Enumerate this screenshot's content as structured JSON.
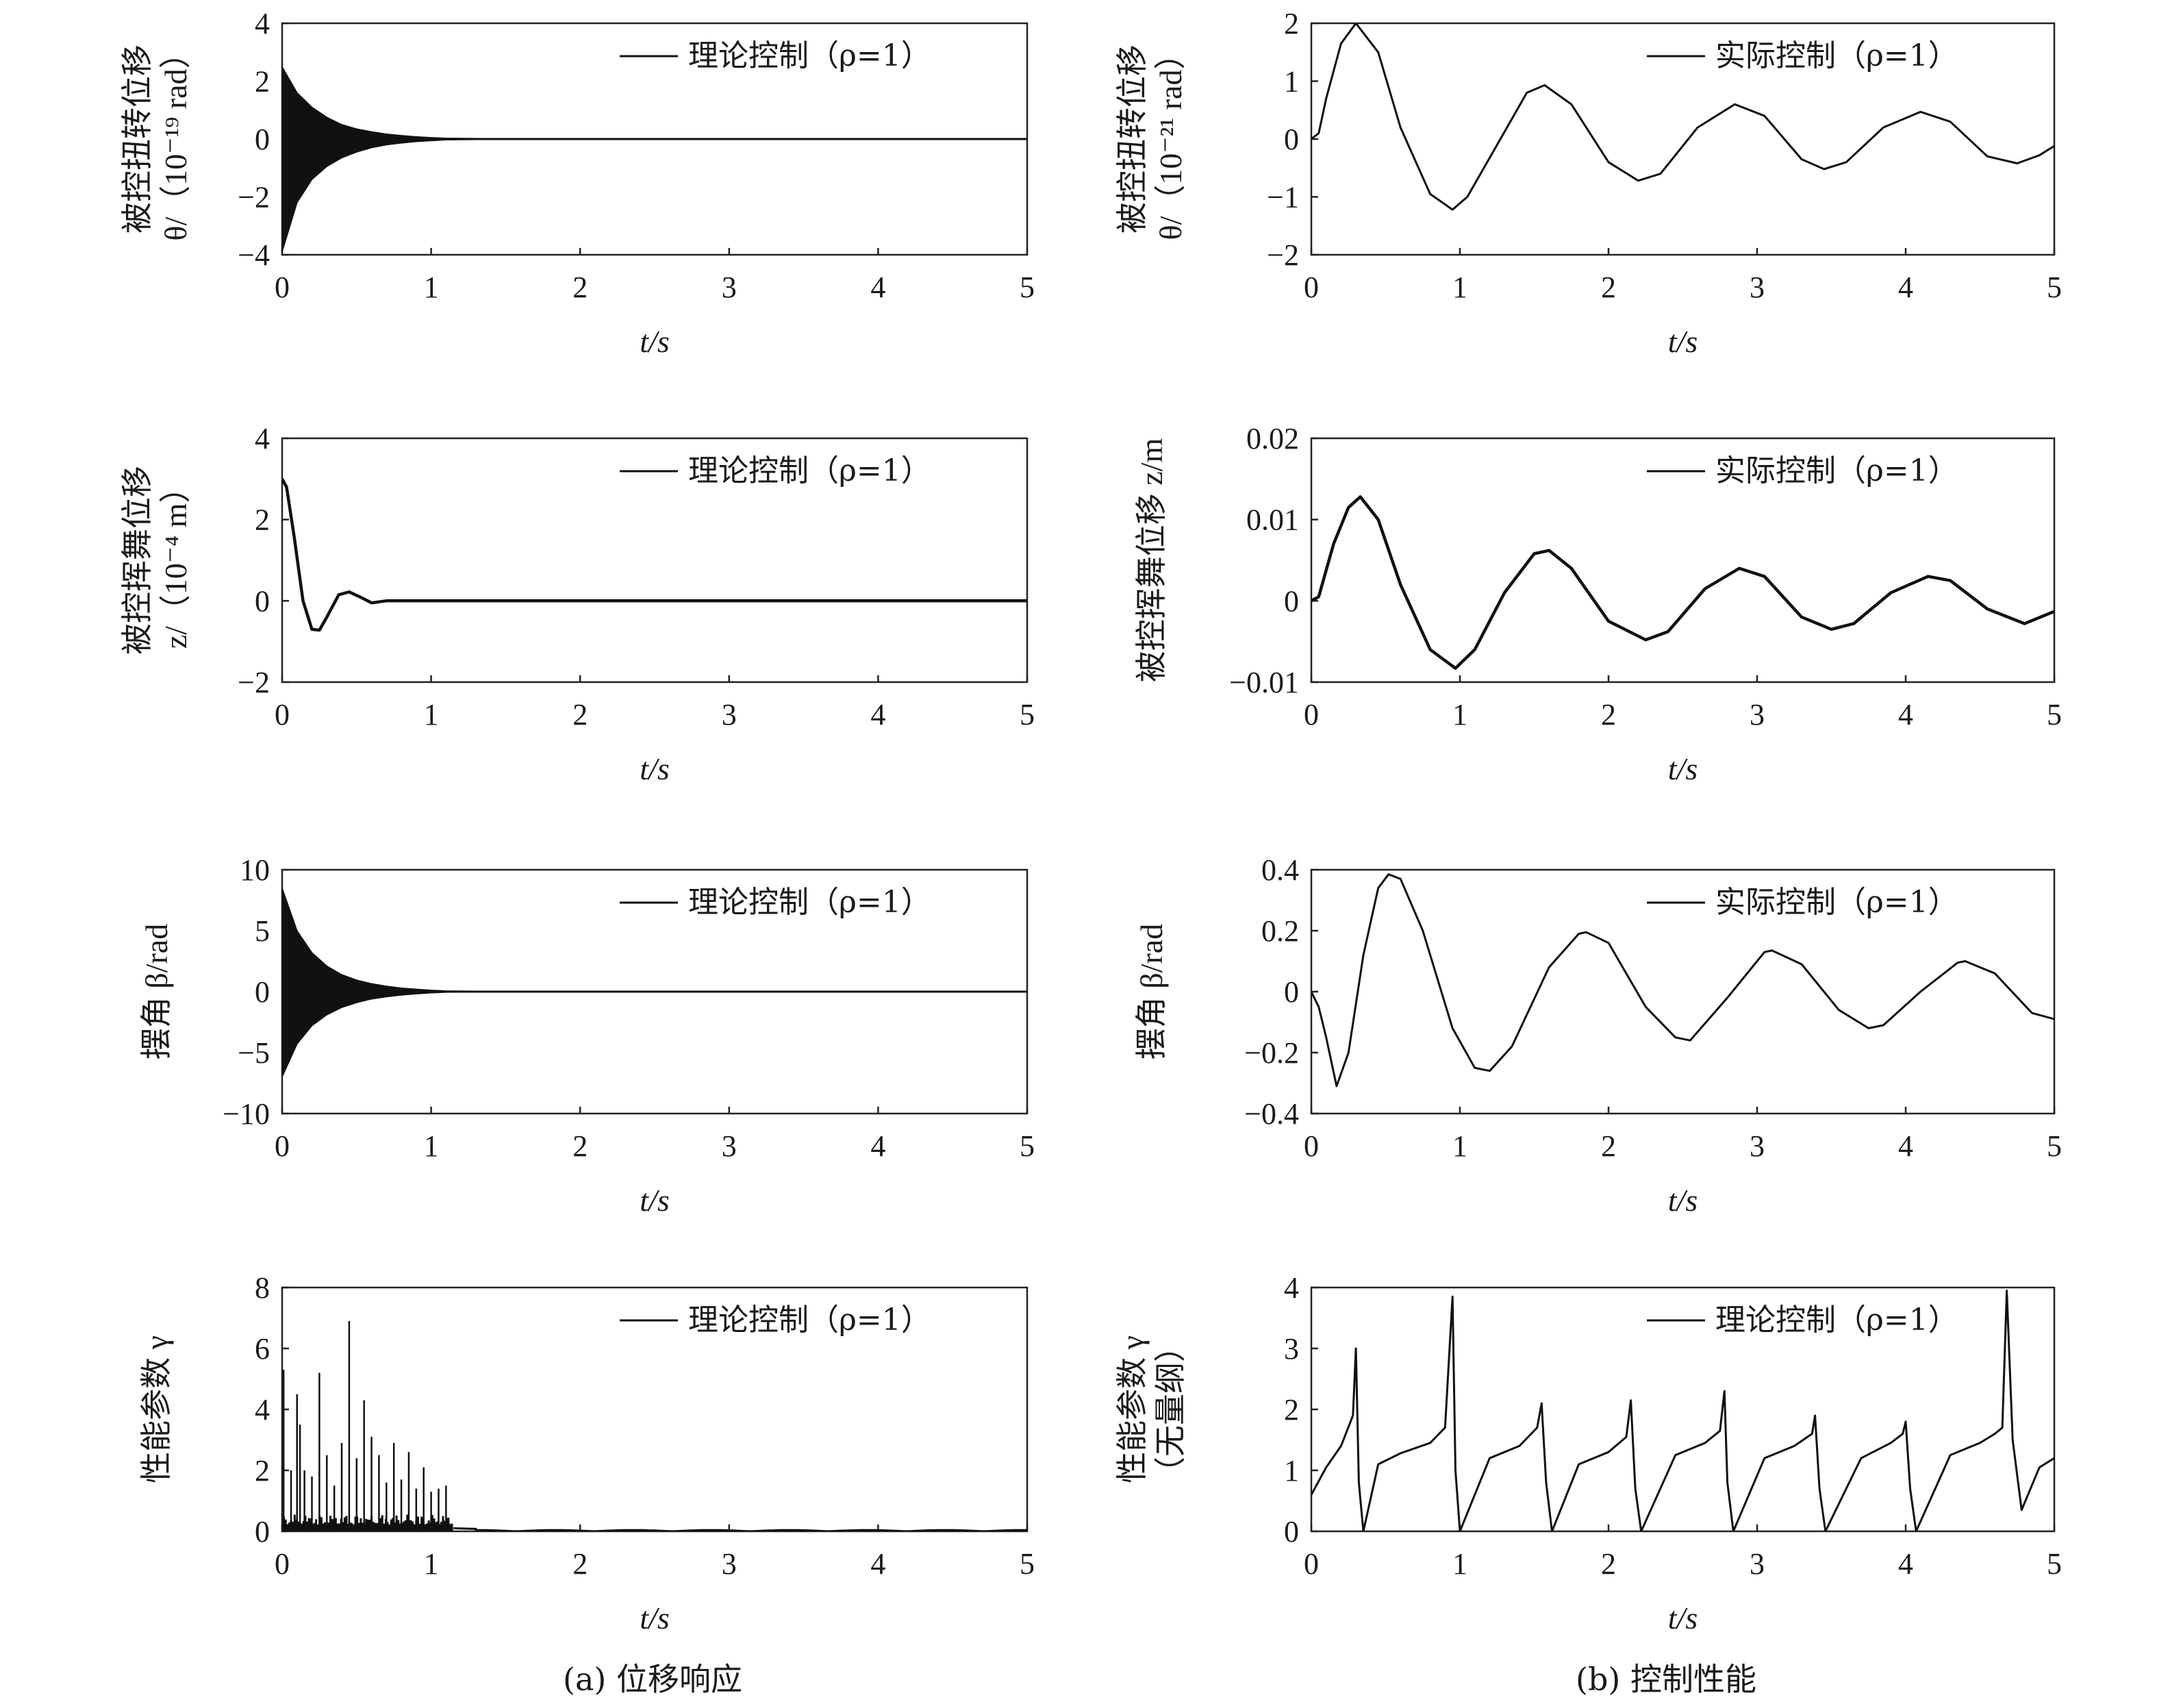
{
  "captions": {
    "left": "(a) 位移响应",
    "right": "(b) 控制性能"
  },
  "chart_data": [
    {
      "type": "line",
      "id": "a1",
      "column": "left",
      "row": 0,
      "ylabel": [
        "被控扭转位移",
        "θ/（10⁻¹⁹ rad）"
      ],
      "xlabel": "t/s",
      "xlim": [
        0,
        5
      ],
      "ylim": [
        -4,
        4
      ],
      "xticks": [
        0,
        1,
        2,
        3,
        4,
        5
      ],
      "yticks": [
        4,
        2,
        0,
        -2,
        -4
      ],
      "xtick_labels": [
        "0",
        "1",
        "2",
        "3",
        "4",
        "5"
      ],
      "ytick_labels": [
        "4",
        "2",
        "0",
        "−2",
        "−4"
      ],
      "legend": "理论控制（ρ=1）",
      "legend_position": "top-right",
      "series": [
        {
          "kind": "envelope",
          "x": [
            0,
            0.1,
            0.2,
            0.3,
            0.4,
            0.5,
            0.6,
            0.7,
            0.8,
            0.9,
            1.0,
            1.1,
            1.5,
            2,
            3,
            4,
            5
          ],
          "upper": [
            2.5,
            1.6,
            1.1,
            0.75,
            0.5,
            0.35,
            0.25,
            0.17,
            0.12,
            0.08,
            0.05,
            0.03,
            0.01,
            0,
            0,
            0,
            0
          ],
          "lower": [
            -3.9,
            -2.2,
            -1.4,
            -0.95,
            -0.65,
            -0.45,
            -0.3,
            -0.2,
            -0.14,
            -0.09,
            -0.06,
            -0.03,
            -0.01,
            0,
            0,
            0,
            0
          ]
        }
      ]
    },
    {
      "type": "line",
      "id": "b1",
      "column": "right",
      "row": 0,
      "ylabel": [
        "被控扭转位移",
        "θ/（10⁻²¹ rad）"
      ],
      "xlabel": "t/s",
      "xlim": [
        0,
        5
      ],
      "ylim": [
        -2,
        2
      ],
      "xticks": [
        0,
        1,
        2,
        3,
        4,
        5
      ],
      "yticks": [
        2,
        1,
        0,
        -1,
        -2
      ],
      "xtick_labels": [
        "0",
        "1",
        "2",
        "3",
        "4",
        "5"
      ],
      "ytick_labels": [
        "2",
        "1",
        "0",
        "−1",
        "−2"
      ],
      "legend": "实际控制（ρ=1）",
      "legend_position": "top-right",
      "series": [
        {
          "kind": "line",
          "x": [
            0,
            0.05,
            0.1,
            0.2,
            0.3,
            0.45,
            0.6,
            0.8,
            0.95,
            1.05,
            1.25,
            1.45,
            1.57,
            1.75,
            2.0,
            2.2,
            2.35,
            2.6,
            2.85,
            3.05,
            3.3,
            3.45,
            3.6,
            3.85,
            4.1,
            4.3,
            4.55,
            4.75,
            4.9,
            5.0
          ],
          "y": [
            0,
            0.1,
            0.7,
            1.65,
            2.0,
            1.5,
            0.2,
            -0.95,
            -1.22,
            -1.0,
            -0.1,
            0.8,
            0.93,
            0.6,
            -0.4,
            -0.72,
            -0.6,
            0.2,
            0.6,
            0.4,
            -0.35,
            -0.52,
            -0.4,
            0.2,
            0.47,
            0.3,
            -0.3,
            -0.42,
            -0.28,
            -0.12
          ]
        }
      ]
    },
    {
      "type": "line",
      "id": "a2",
      "column": "left",
      "row": 1,
      "ylabel": [
        "被控挥舞位移",
        "z/（10⁻⁴ m）"
      ],
      "xlabel": "t/s",
      "xlim": [
        0,
        5
      ],
      "ylim": [
        -2,
        4
      ],
      "xticks": [
        0,
        1,
        2,
        3,
        4,
        5
      ],
      "yticks": [
        4,
        2,
        0,
        -2
      ],
      "xtick_labels": [
        "0",
        "1",
        "2",
        "3",
        "4",
        "5"
      ],
      "ytick_labels": [
        "4",
        "2",
        "0",
        "−2"
      ],
      "legend": "理论控制（ρ=1）",
      "legend_position": "top-right",
      "series": [
        {
          "kind": "line",
          "x": [
            0,
            0.03,
            0.08,
            0.14,
            0.2,
            0.25,
            0.3,
            0.38,
            0.45,
            0.52,
            0.6,
            0.7,
            0.8,
            1.0,
            2,
            3,
            4,
            5
          ],
          "y": [
            3.0,
            2.8,
            1.6,
            0.0,
            -0.7,
            -0.72,
            -0.4,
            0.15,
            0.22,
            0.1,
            -0.05,
            0.0,
            0.0,
            0.0,
            0,
            0,
            0,
            0
          ]
        }
      ]
    },
    {
      "type": "line",
      "id": "b2",
      "column": "right",
      "row": 1,
      "ylabel": [
        "被控挥舞位移 z/m"
      ],
      "xlabel": "t/s",
      "xlim": [
        0,
        5
      ],
      "ylim": [
        -0.01,
        0.02
      ],
      "xticks": [
        0,
        1,
        2,
        3,
        4,
        5
      ],
      "yticks": [
        0.02,
        0.01,
        0,
        -0.01
      ],
      "xtick_labels": [
        "0",
        "1",
        "2",
        "3",
        "4",
        "5"
      ],
      "ytick_labels": [
        "0.02",
        "0.01",
        "0",
        "−0.01"
      ],
      "legend": "实际控制（ρ=1）",
      "legend_position": "top-right",
      "series": [
        {
          "kind": "line",
          "x": [
            0,
            0.05,
            0.15,
            0.25,
            0.33,
            0.45,
            0.6,
            0.8,
            0.97,
            1.1,
            1.3,
            1.5,
            1.6,
            1.75,
            2.0,
            2.25,
            2.4,
            2.65,
            2.88,
            3.05,
            3.3,
            3.5,
            3.65,
            3.9,
            4.15,
            4.3,
            4.55,
            4.8,
            5.0
          ],
          "y": [
            0,
            0.0005,
            0.007,
            0.0115,
            0.0128,
            0.01,
            0.002,
            -0.006,
            -0.0083,
            -0.006,
            0.001,
            0.0058,
            0.0062,
            0.004,
            -0.0025,
            -0.0048,
            -0.0038,
            0.0015,
            0.004,
            0.003,
            -0.002,
            -0.0035,
            -0.0028,
            0.001,
            0.003,
            0.0025,
            -0.001,
            -0.0028,
            -0.0013
          ]
        }
      ]
    },
    {
      "type": "line",
      "id": "a3",
      "column": "left",
      "row": 2,
      "ylabel": [
        "摆角 β/rad"
      ],
      "xlabel": "t/s",
      "xlim": [
        0,
        5
      ],
      "ylim": [
        -10,
        10
      ],
      "xticks": [
        0,
        1,
        2,
        3,
        4,
        5
      ],
      "yticks": [
        10,
        5,
        0,
        -5,
        -10
      ],
      "xtick_labels": [
        "0",
        "1",
        "2",
        "3",
        "4",
        "5"
      ],
      "ytick_labels": [
        "10",
        "5",
        "0",
        "−5",
        "−10"
      ],
      "legend": "理论控制（ρ=1）",
      "legend_position": "top-right",
      "series": [
        {
          "kind": "envelope",
          "x": [
            0,
            0.1,
            0.2,
            0.3,
            0.4,
            0.5,
            0.6,
            0.7,
            0.8,
            0.9,
            1.0,
            1.1,
            1.5,
            2,
            3,
            4,
            5
          ],
          "upper": [
            8.5,
            5.0,
            3.2,
            2.1,
            1.4,
            0.95,
            0.65,
            0.45,
            0.3,
            0.2,
            0.12,
            0.06,
            0.02,
            0,
            0,
            0,
            0
          ],
          "lower": [
            -7.0,
            -4.3,
            -2.8,
            -1.9,
            -1.3,
            -0.9,
            -0.6,
            -0.42,
            -0.28,
            -0.18,
            -0.1,
            -0.05,
            -0.02,
            0,
            0,
            0,
            0
          ]
        }
      ]
    },
    {
      "type": "line",
      "id": "b3",
      "column": "right",
      "row": 2,
      "ylabel": [
        "摆角 β/rad"
      ],
      "xlabel": "t/s",
      "xlim": [
        0,
        5
      ],
      "ylim": [
        -0.4,
        0.4
      ],
      "xticks": [
        0,
        1,
        2,
        3,
        4,
        5
      ],
      "yticks": [
        0.4,
        0.2,
        0,
        -0.2,
        -0.4
      ],
      "xtick_labels": [
        "0",
        "1",
        "2",
        "3",
        "4",
        "5"
      ],
      "ytick_labels": [
        "0.4",
        "0.2",
        "0",
        "−0.2",
        "−0.4"
      ],
      "legend": "实际控制（ρ=1）",
      "legend_position": "top-right",
      "series": [
        {
          "kind": "line",
          "x": [
            0,
            0.05,
            0.1,
            0.17,
            0.25,
            0.35,
            0.45,
            0.52,
            0.6,
            0.75,
            0.95,
            1.1,
            1.2,
            1.35,
            1.6,
            1.8,
            1.85,
            2.0,
            2.25,
            2.45,
            2.55,
            2.8,
            3.05,
            3.1,
            3.3,
            3.55,
            3.75,
            3.85,
            4.1,
            4.35,
            4.4,
            4.6,
            4.85,
            5.0
          ],
          "y": [
            0,
            -0.05,
            -0.15,
            -0.31,
            -0.2,
            0.12,
            0.34,
            0.385,
            0.37,
            0.2,
            -0.12,
            -0.25,
            -0.26,
            -0.18,
            0.08,
            0.19,
            0.195,
            0.16,
            -0.05,
            -0.15,
            -0.16,
            -0.02,
            0.13,
            0.135,
            0.09,
            -0.06,
            -0.12,
            -0.11,
            0.0,
            0.095,
            0.1,
            0.06,
            -0.07,
            -0.09
          ]
        }
      ]
    },
    {
      "type": "line",
      "id": "a4",
      "column": "left",
      "row": 3,
      "ylabel": [
        "性能参数 γ"
      ],
      "xlabel": "t/s",
      "xlim": [
        0,
        5
      ],
      "ylim": [
        0,
        8
      ],
      "xticks": [
        0,
        1,
        2,
        3,
        4,
        5
      ],
      "yticks": [
        8,
        6,
        4,
        2,
        0
      ],
      "xtick_labels": [
        "0",
        "1",
        "2",
        "3",
        "4",
        "5"
      ],
      "ytick_labels": [
        "8",
        "6",
        "4",
        "2",
        "0"
      ],
      "legend": "理论控制（ρ=1）",
      "legend_position": "top-right",
      "series": [
        {
          "kind": "spikes",
          "peaks": [
            [
              0.01,
              5.3
            ],
            [
              0.06,
              2.0
            ],
            [
              0.1,
              4.5
            ],
            [
              0.12,
              3.5
            ],
            [
              0.15,
              2.0
            ],
            [
              0.2,
              1.8
            ],
            [
              0.25,
              5.2
            ],
            [
              0.3,
              2.5
            ],
            [
              0.35,
              1.5
            ],
            [
              0.4,
              2.9
            ],
            [
              0.45,
              6.9
            ],
            [
              0.5,
              2.4
            ],
            [
              0.55,
              4.3
            ],
            [
              0.6,
              3.1
            ],
            [
              0.65,
              2.5
            ],
            [
              0.7,
              1.6
            ],
            [
              0.75,
              2.9
            ],
            [
              0.8,
              1.7
            ],
            [
              0.85,
              2.6
            ],
            [
              0.9,
              1.4
            ],
            [
              0.95,
              2.1
            ],
            [
              1.0,
              1.3
            ],
            [
              1.05,
              1.4
            ],
            [
              1.1,
              1.5
            ]
          ],
          "base": 0.55,
          "tail": 0.04
        }
      ]
    },
    {
      "type": "line",
      "id": "b4",
      "column": "right",
      "row": 3,
      "ylabel": [
        "性能参数 γ",
        "（无量纲）"
      ],
      "xlabel": "t/s",
      "xlim": [
        0,
        5
      ],
      "ylim": [
        0,
        4
      ],
      "xticks": [
        0,
        1,
        2,
        3,
        4,
        5
      ],
      "yticks": [
        4,
        3,
        2,
        1,
        0
      ],
      "xtick_labels": [
        "0",
        "1",
        "2",
        "3",
        "4",
        "5"
      ],
      "ytick_labels": [
        "4",
        "3",
        "2",
        "1",
        "0"
      ],
      "legend": "理论控制（ρ=1）",
      "legend_position": "top-right",
      "series": [
        {
          "kind": "line",
          "x": [
            0,
            0.1,
            0.2,
            0.28,
            0.3,
            0.32,
            0.35,
            0.45,
            0.6,
            0.8,
            0.9,
            0.95,
            0.97,
            1.0,
            1.2,
            1.4,
            1.52,
            1.55,
            1.58,
            1.62,
            1.8,
            2.0,
            2.12,
            2.15,
            2.18,
            2.22,
            2.45,
            2.65,
            2.75,
            2.78,
            2.8,
            2.84,
            3.05,
            3.25,
            3.37,
            3.39,
            3.42,
            3.46,
            3.7,
            3.9,
            3.98,
            4.0,
            4.03,
            4.07,
            4.3,
            4.5,
            4.6,
            4.65,
            4.68,
            4.72,
            4.78,
            4.9,
            5.0
          ],
          "y": [
            0.6,
            1.05,
            1.4,
            1.9,
            3.0,
            0.8,
            0.0,
            1.1,
            1.28,
            1.45,
            1.7,
            3.85,
            1.0,
            0.0,
            1.2,
            1.4,
            1.7,
            2.1,
            0.8,
            0.0,
            1.1,
            1.3,
            1.55,
            2.15,
            0.7,
            0.0,
            1.25,
            1.45,
            1.65,
            2.3,
            0.8,
            0.0,
            1.2,
            1.4,
            1.6,
            1.9,
            0.7,
            0.0,
            1.2,
            1.45,
            1.6,
            1.8,
            0.7,
            0.0,
            1.25,
            1.45,
            1.6,
            1.7,
            3.95,
            1.5,
            0.35,
            1.05,
            1.2
          ]
        }
      ]
    }
  ]
}
